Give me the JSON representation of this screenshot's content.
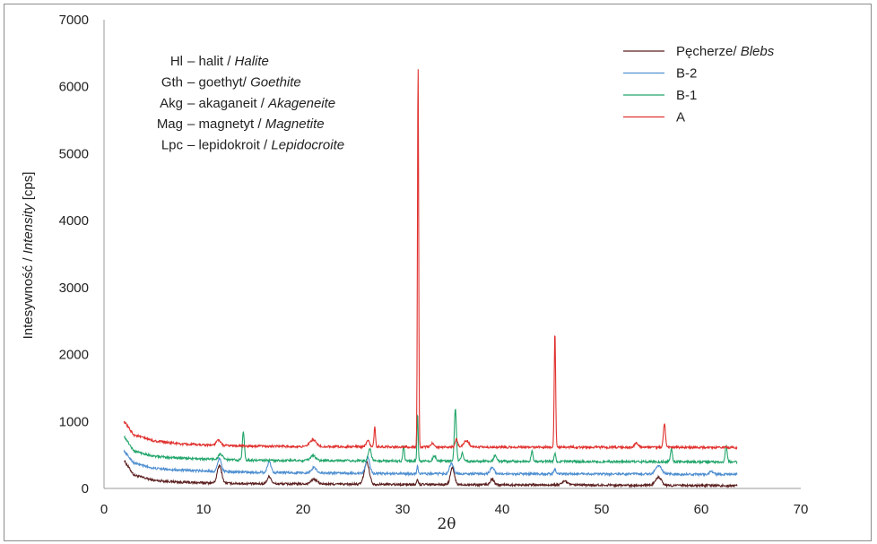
{
  "chart_data": {
    "type": "line",
    "xlabel": "2θ",
    "ylabel_main": "Intesywność / ",
    "ylabel_italic": "Intensity",
    "ylabel_unit": " [cps]",
    "xlim": [
      0,
      70
    ],
    "ylim": [
      0,
      7000
    ],
    "x_ticks": [
      "0",
      "10",
      "20",
      "30",
      "40",
      "50",
      "60",
      "70"
    ],
    "y_ticks": [
      "0",
      "1000",
      "2000",
      "3000",
      "4000",
      "5000",
      "6000",
      "7000"
    ],
    "grid": false,
    "legend_position": "top-right",
    "abbreviations": [
      {
        "code": "Hl",
        "pl": "– halit / ",
        "en": "Halite"
      },
      {
        "code": "Gth",
        "pl": "– goethyt/ ",
        "en": "Goethite"
      },
      {
        "code": "Akg",
        "pl": "– akaganeit / ",
        "en": "Akageneite"
      },
      {
        "code": "Mag",
        "pl": "– magnetyt / ",
        "en": "Magnetite"
      },
      {
        "code": "Lpc",
        "pl": "– lepidokroit / ",
        "en": "Lepidocroite"
      }
    ],
    "series": [
      {
        "name": "Pęcherze/ ",
        "name_italic": "Blebs",
        "color": "#5b1f1f",
        "baseline": [
          [
            2,
            420
          ],
          [
            3,
            200
          ],
          [
            5,
            120
          ],
          [
            8,
            90
          ],
          [
            15,
            70
          ],
          [
            30,
            60
          ],
          [
            50,
            50
          ],
          [
            63.5,
            40
          ]
        ],
        "peaks": [
          [
            11.6,
            260,
            0.22
          ],
          [
            16.6,
            110,
            0.2
          ],
          [
            21.1,
            70,
            0.3
          ],
          [
            26.4,
            330,
            0.25
          ],
          [
            31.5,
            80,
            0.07
          ],
          [
            35.0,
            250,
            0.2
          ],
          [
            39.0,
            80,
            0.2
          ],
          [
            46.3,
            60,
            0.25
          ],
          [
            55.7,
            120,
            0.3
          ]
        ]
      },
      {
        "name": "B-2",
        "name_italic": "",
        "color": "#4f8fd0",
        "baseline": [
          [
            2,
            560
          ],
          [
            3,
            380
          ],
          [
            5,
            300
          ],
          [
            8,
            270
          ],
          [
            15,
            240
          ],
          [
            30,
            220
          ],
          [
            50,
            215
          ],
          [
            63.5,
            210
          ]
        ],
        "peaks": [
          [
            11.6,
            200,
            0.18
          ],
          [
            16.6,
            160,
            0.18
          ],
          [
            21.1,
            80,
            0.25
          ],
          [
            26.5,
            240,
            0.2
          ],
          [
            31.5,
            130,
            0.06
          ],
          [
            34.9,
            160,
            0.2
          ],
          [
            39.0,
            100,
            0.2
          ],
          [
            45.3,
            70,
            0.1
          ],
          [
            55.7,
            130,
            0.3
          ],
          [
            61.0,
            50,
            0.2
          ]
        ]
      },
      {
        "name": "B-1",
        "name_italic": "",
        "color": "#22a56a",
        "baseline": [
          [
            2,
            780
          ],
          [
            3,
            560
          ],
          [
            5,
            480
          ],
          [
            8,
            450
          ],
          [
            15,
            420
          ],
          [
            30,
            410
          ],
          [
            50,
            400
          ],
          [
            63.5,
            395
          ]
        ],
        "peaks": [
          [
            11.7,
            80,
            0.2
          ],
          [
            14.0,
            420,
            0.1
          ],
          [
            21.0,
            80,
            0.25
          ],
          [
            26.7,
            180,
            0.15
          ],
          [
            30.1,
            230,
            0.08
          ],
          [
            31.5,
            720,
            0.06
          ],
          [
            33.2,
            80,
            0.15
          ],
          [
            35.3,
            800,
            0.1
          ],
          [
            36.0,
            120,
            0.12
          ],
          [
            39.3,
            90,
            0.15
          ],
          [
            43.0,
            160,
            0.1
          ],
          [
            45.3,
            120,
            0.08
          ],
          [
            57.0,
            200,
            0.1
          ],
          [
            62.5,
            240,
            0.1
          ]
        ]
      },
      {
        "name": "A",
        "name_italic": "",
        "color": "#e0312e",
        "baseline": [
          [
            2,
            1000
          ],
          [
            3,
            800
          ],
          [
            5,
            710
          ],
          [
            8,
            660
          ],
          [
            15,
            630
          ],
          [
            30,
            620
          ],
          [
            50,
            615
          ],
          [
            63.5,
            610
          ]
        ],
        "peaks": [
          [
            11.5,
            80,
            0.2
          ],
          [
            21.0,
            100,
            0.3
          ],
          [
            26.5,
            100,
            0.15
          ],
          [
            27.2,
            300,
            0.07
          ],
          [
            31.55,
            5720,
            0.06
          ],
          [
            33.0,
            60,
            0.15
          ],
          [
            35.4,
            120,
            0.12
          ],
          [
            36.4,
            100,
            0.25
          ],
          [
            45.3,
            1720,
            0.07
          ],
          [
            53.5,
            60,
            0.2
          ],
          [
            56.3,
            360,
            0.1
          ]
        ]
      }
    ]
  }
}
